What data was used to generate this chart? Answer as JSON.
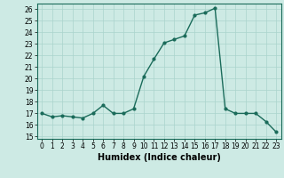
{
  "x": [
    0,
    1,
    2,
    3,
    4,
    5,
    6,
    7,
    8,
    9,
    10,
    11,
    12,
    13,
    14,
    15,
    16,
    17,
    18,
    19,
    20,
    21,
    22,
    23
  ],
  "y": [
    17.0,
    16.7,
    16.8,
    16.7,
    16.6,
    17.0,
    17.7,
    17.0,
    17.0,
    17.4,
    20.2,
    21.7,
    23.1,
    23.4,
    23.7,
    25.5,
    25.7,
    26.1,
    17.4,
    17.0,
    17.0,
    17.0,
    16.3,
    15.4
  ],
  "line_color": "#1a6b5a",
  "marker": "o",
  "markersize": 2.0,
  "linewidth": 1.0,
  "xlabel": "Humidex (Indice chaleur)",
  "xlabel_fontsize": 7,
  "ylabel_ticks": [
    15,
    16,
    17,
    18,
    19,
    20,
    21,
    22,
    23,
    24,
    25,
    26
  ],
  "xlim": [
    -0.5,
    23.5
  ],
  "ylim": [
    14.8,
    26.5
  ],
  "xticks": [
    0,
    1,
    2,
    3,
    4,
    5,
    6,
    7,
    8,
    9,
    10,
    11,
    12,
    13,
    14,
    15,
    16,
    17,
    18,
    19,
    20,
    21,
    22,
    23
  ],
  "bg_color": "#cdeae4",
  "grid_color": "#aad4cc",
  "tick_fontsize": 5.5
}
